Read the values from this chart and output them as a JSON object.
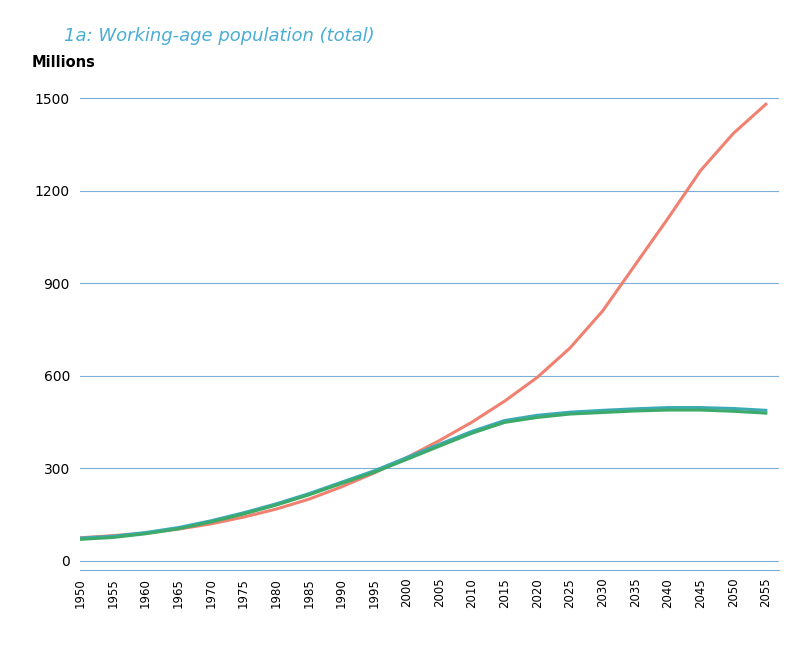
{
  "title": "1a: Working-age population (total)",
  "ylabel": "Millions",
  "title_color": "#4AAED4",
  "title_fontsize": 13,
  "ylabel_fontsize": 10.5,
  "background_color": "#ffffff",
  "grid_color": "#7BAFD4",
  "ylim": [
    -30,
    1560
  ],
  "yticks": [
    0,
    300,
    600,
    900,
    1200,
    1500
  ],
  "years": [
    1950,
    1955,
    1960,
    1965,
    1970,
    1975,
    1980,
    1985,
    1990,
    1995,
    2000,
    2005,
    2010,
    2015,
    2020,
    2025,
    2030,
    2035,
    2040,
    2045,
    2050,
    2055
  ],
  "orange_line": [
    75,
    82,
    90,
    103,
    120,
    142,
    168,
    200,
    240,
    285,
    335,
    390,
    450,
    518,
    595,
    690,
    810,
    960,
    1110,
    1265,
    1385,
    1480
  ],
  "teal_line": [
    74,
    80,
    92,
    108,
    130,
    156,
    185,
    218,
    255,
    292,
    335,
    378,
    420,
    455,
    472,
    482,
    488,
    493,
    497,
    497,
    494,
    488
  ],
  "green_line": [
    70,
    76,
    88,
    104,
    126,
    152,
    181,
    214,
    251,
    287,
    329,
    372,
    414,
    449,
    465,
    476,
    481,
    486,
    489,
    489,
    485,
    479
  ],
  "orange_color": "#F08070",
  "teal_color": "#3BAAB4",
  "green_color": "#3DAA6A",
  "line_width": 2.2,
  "xtick_fontsize": 8.5,
  "ytick_fontsize": 10
}
